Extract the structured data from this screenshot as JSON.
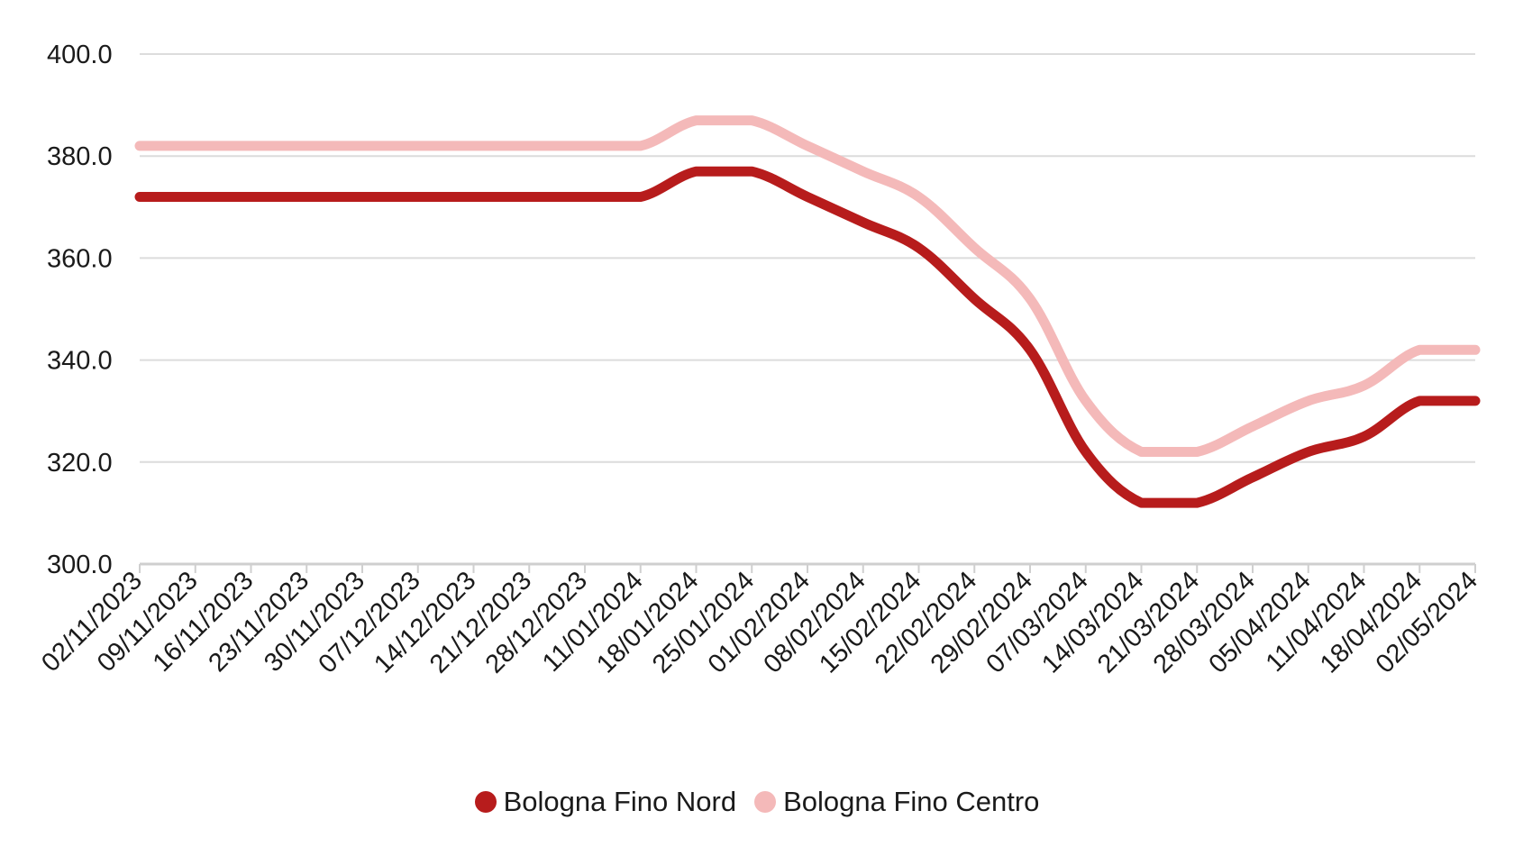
{
  "chart_data": {
    "type": "line",
    "x": [
      "02/11/2023",
      "09/11/2023",
      "16/11/2023",
      "23/11/2023",
      "30/11/2023",
      "07/12/2023",
      "14/12/2023",
      "21/12/2023",
      "28/12/2023",
      "11/01/2024",
      "18/01/2024",
      "25/01/2024",
      "01/02/2024",
      "08/02/2024",
      "15/02/2024",
      "22/02/2024",
      "29/02/2024",
      "07/03/2024",
      "14/03/2024",
      "21/03/2024",
      "28/03/2024",
      "05/04/2024",
      "11/04/2024",
      "18/04/2024",
      "02/05/2024"
    ],
    "series": [
      {
        "name": "Bologna Fino Nord",
        "color": "#b71c1c",
        "values": [
          372,
          372,
          372,
          372,
          372,
          372,
          372,
          372,
          372,
          372,
          377,
          377,
          372,
          367,
          362,
          352,
          342,
          322,
          312,
          312,
          317,
          322,
          325,
          332,
          332
        ]
      },
      {
        "name": "Bologna Fino Centro",
        "color": "#f4b9b9",
        "values": [
          382,
          382,
          382,
          382,
          382,
          382,
          382,
          382,
          382,
          382,
          387,
          387,
          382,
          377,
          372,
          362,
          352,
          332,
          322,
          322,
          327,
          332,
          335,
          342,
          342
        ]
      }
    ],
    "y_ticks": [
      "300.0",
      "320.0",
      "340.0",
      "360.0",
      "380.0",
      "400.0"
    ],
    "ylim": [
      300,
      400
    ],
    "grid": true,
    "legend_position": "bottom-center",
    "title": "",
    "xlabel": "",
    "ylabel": ""
  },
  "legend": {
    "items": [
      {
        "label": "Bologna Fino Nord",
        "color": "#b71c1c",
        "icon": "circle-swatch"
      },
      {
        "label": "Bologna Fino Centro",
        "color": "#f4b9b9",
        "icon": "circle-swatch"
      }
    ]
  }
}
